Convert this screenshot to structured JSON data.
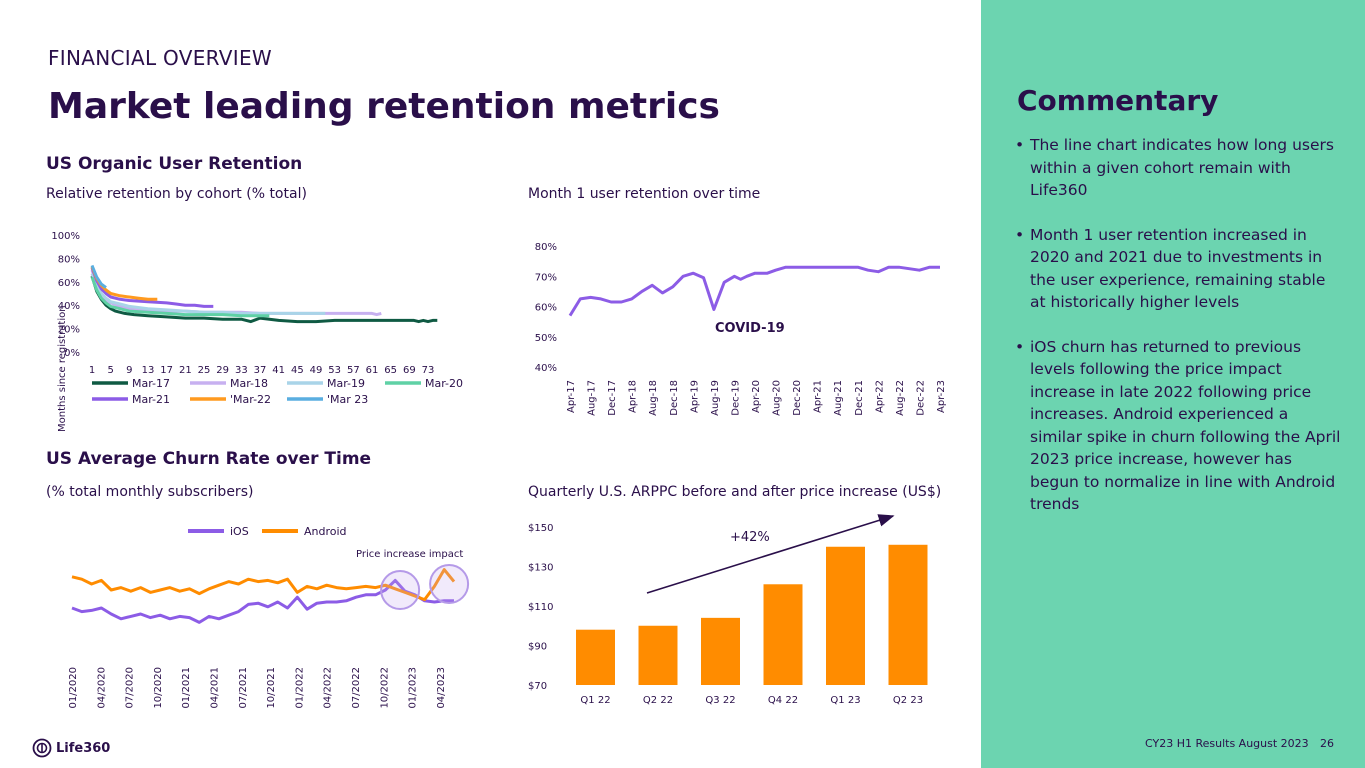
{
  "header": {
    "section": "FINANCIAL OVERVIEW",
    "title": "Market leading retention metrics"
  },
  "colors": {
    "navy": "#2a0f4a",
    "purple": "#8c5ce6",
    "orange": "#ff8c00",
    "green_panel": "#6cd4b0",
    "mar17": "#0f5a43",
    "mar18": "#c7b0f0",
    "mar19": "#a9d4e8",
    "mar20": "#5fd1a5",
    "mar21": "#8c5ce6",
    "mar22": "#ff9a1f",
    "mar23": "#5aaee0"
  },
  "sections": {
    "retention_title": "US Organic User Retention",
    "churn_title": "US Average Churn Rate over Time"
  },
  "commentary": {
    "title": "Commentary",
    "bullets": [
      "The line chart indicates how long users within a given cohort remain with Life360",
      "Month 1 user retention increased in 2020 and 2021 due to investments in the user experience, remaining stable at historically higher levels",
      "iOS churn has returned to previous levels following the price impact increase in late 2022 following price increases.  Android experienced a similar spike in churn following the April 2023 price increase, however has begun to normalize in line with Android trends"
    ]
  },
  "footer": {
    "logo": "Life360",
    "text": "CY23 H1 Results August 2023",
    "page": "26"
  },
  "chart_data": [
    {
      "id": "cohort",
      "type": "line",
      "title": "Relative retention by cohort (% total)",
      "xlabel": "Months since registration",
      "ylabel": "",
      "ylim": [
        0,
        100
      ],
      "yticks": [
        "0%",
        "20%",
        "40%",
        "60%",
        "80%",
        "100%"
      ],
      "xlim": [
        1,
        76
      ],
      "xticks": [
        "1",
        "5",
        "9",
        "13",
        "17",
        "21",
        "25",
        "29",
        "33",
        "37",
        "41",
        "45",
        "49",
        "53",
        "57",
        "61",
        "65",
        "69",
        "73"
      ],
      "series": [
        {
          "name": "Mar-17",
          "color": "#0f5a43",
          "x": [
            1,
            2,
            3,
            4,
            5,
            6,
            8,
            10,
            13,
            17,
            21,
            25,
            29,
            33,
            35,
            37,
            41,
            45,
            49,
            53,
            57,
            61,
            65,
            70,
            71,
            72,
            73,
            74,
            75
          ],
          "values": [
            65,
            52,
            45,
            40,
            37,
            35,
            33,
            32,
            31,
            30,
            29,
            29,
            28,
            28,
            26,
            29,
            27,
            26,
            26,
            27,
            27,
            27,
            27,
            27,
            26,
            27,
            26,
            27,
            27
          ]
        },
        {
          "name": "Mar-18",
          "color": "#c7b0f0",
          "x": [
            1,
            2,
            3,
            4,
            5,
            7,
            9,
            13,
            17,
            21,
            25,
            29,
            33,
            37,
            41,
            45,
            49,
            53,
            57,
            61,
            62,
            63
          ],
          "values": [
            70,
            58,
            50,
            45,
            42,
            39,
            37,
            36,
            35,
            35,
            34,
            34,
            34,
            33,
            33,
            33,
            33,
            33,
            33,
            33,
            32,
            33
          ]
        },
        {
          "name": "Mar-19",
          "color": "#a9d4e8",
          "x": [
            1,
            2,
            3,
            4,
            5,
            7,
            9,
            13,
            17,
            21,
            25,
            29,
            33,
            37,
            41,
            45,
            49,
            51
          ],
          "values": [
            67,
            57,
            50,
            46,
            43,
            41,
            39,
            37,
            36,
            35,
            34,
            34,
            33,
            33,
            33,
            33,
            33,
            33
          ]
        },
        {
          "name": "Mar-20",
          "color": "#5fd1a5",
          "x": [
            1,
            2,
            3,
            4,
            5,
            7,
            9,
            13,
            17,
            21,
            25,
            29,
            33,
            37,
            39
          ],
          "values": [
            64,
            53,
            46,
            42,
            39,
            37,
            35,
            34,
            33,
            32,
            32,
            32,
            31,
            31,
            31
          ]
        },
        {
          "name": "Mar-21",
          "color": "#8c5ce6",
          "x": [
            1,
            2,
            3,
            4,
            5,
            7,
            9,
            13,
            17,
            19,
            21,
            23,
            25,
            27
          ],
          "values": [
            72,
            61,
            54,
            50,
            47,
            45,
            44,
            43,
            42,
            41,
            40,
            40,
            39,
            39
          ]
        },
        {
          "name": "'Mar-22",
          "color": "#ff9a1f",
          "x": [
            1,
            2,
            3,
            4,
            5,
            7,
            9,
            11,
            13,
            15
          ],
          "values": [
            73,
            63,
            57,
            53,
            50,
            48,
            47,
            46,
            45,
            45
          ]
        },
        {
          "name": "'Mar 23",
          "color": "#5aaee0",
          "x": [
            1,
            2,
            3,
            4
          ],
          "values": [
            74,
            64,
            58,
            55
          ]
        }
      ]
    },
    {
      "id": "month1",
      "type": "line",
      "title": "Month 1 user retention over time",
      "ylim": [
        40,
        80
      ],
      "yticks": [
        "40%",
        "50%",
        "60%",
        "70%",
        "80%"
      ],
      "categories": [
        "Apr-17",
        "Aug-17",
        "Dec-17",
        "Apr-18",
        "Aug-18",
        "Dec-18",
        "Apr-19",
        "Aug-19",
        "Dec-19",
        "Apr-20",
        "Aug-20",
        "Dec-20",
        "Apr-21",
        "Aug-21",
        "Dec-21",
        "Apr-22",
        "Aug-22",
        "Dec-22",
        "Apr-23"
      ],
      "series": [
        {
          "name": "Month 1 retention",
          "color": "#8c5ce6",
          "x": [
            0,
            0.5,
            1,
            1.5,
            2,
            2.5,
            3,
            3.5,
            4,
            4.5,
            5,
            5.5,
            6,
            6.5,
            7,
            7.5,
            8,
            8.3,
            8.6,
            9.0,
            9.3,
            9.6,
            10,
            10.5,
            11,
            11.5,
            12,
            12.5,
            13,
            13.5,
            14,
            14.5,
            15,
            15.5,
            16,
            16.5,
            17,
            17.5,
            18
          ],
          "values": [
            57,
            62.5,
            63,
            62.5,
            61.5,
            61.5,
            62.5,
            65,
            67,
            64.5,
            66.5,
            70,
            71,
            69.5,
            59,
            68,
            70,
            69,
            70,
            71,
            71,
            71,
            72,
            73,
            73,
            73,
            73,
            73,
            73,
            73,
            73,
            72,
            71.5,
            73,
            73,
            72.5,
            72,
            73,
            73
          ]
        }
      ],
      "annotation": "COVID-19"
    },
    {
      "id": "churn",
      "type": "line",
      "title": "(% total monthly subscribers)",
      "xticks": [
        "01/2020",
        "04/2020",
        "07/2020",
        "10/2020",
        "01/2021",
        "04/2021",
        "07/2021",
        "10/2021",
        "01/2022",
        "04/2022",
        "07/2022",
        "10/2022",
        "01/2023",
        "04/2023"
      ],
      "ylim": [
        0,
        10
      ],
      "series": [
        {
          "name": "iOS",
          "color": "#8c5ce6",
          "values": [
            3.5,
            3.2,
            3.3,
            3.5,
            3.0,
            2.6,
            2.8,
            3.0,
            2.7,
            2.9,
            2.6,
            2.8,
            2.7,
            2.3,
            2.8,
            2.6,
            2.9,
            3.2,
            3.8,
            3.9,
            3.6,
            4.0,
            3.5,
            4.4,
            3.4,
            3.9,
            4.0,
            4.0,
            4.1,
            4.4,
            4.6,
            4.6,
            5.0,
            5.8,
            4.9,
            4.6,
            4.1,
            4.0,
            4.1,
            4.1
          ]
        },
        {
          "name": "Android",
          "color": "#ff8c00",
          "values": [
            6.1,
            5.9,
            5.5,
            5.8,
            5.0,
            5.2,
            4.9,
            5.2,
            4.8,
            5.0,
            5.2,
            4.9,
            5.1,
            4.7,
            5.1,
            5.4,
            5.7,
            5.5,
            5.9,
            5.7,
            5.8,
            5.6,
            5.9,
            4.8,
            5.3,
            5.1,
            5.4,
            5.2,
            5.1,
            5.2,
            5.3,
            5.2,
            5.4,
            5.1,
            4.8,
            4.5,
            4.2,
            5.3,
            6.7,
            5.7
          ]
        }
      ],
      "annotation": "Price increase impact"
    },
    {
      "id": "arppc",
      "type": "bar",
      "title": "Quarterly U.S. ARPPC before and after price increase (US$)",
      "categories": [
        "Q1 22",
        "Q2 22",
        "Q3 22",
        "Q4 22",
        "Q1 23",
        "Q2 23"
      ],
      "values": [
        98,
        100,
        104,
        121,
        140,
        141
      ],
      "ylim": [
        70,
        150
      ],
      "yticks": [
        "$70",
        "$90",
        "$110",
        "$130",
        "$150"
      ],
      "color": "#ff8c00",
      "annotation": "+42%"
    }
  ]
}
